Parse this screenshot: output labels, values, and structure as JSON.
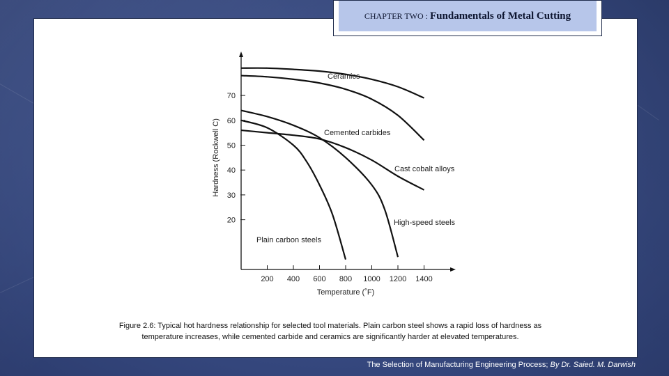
{
  "header": {
    "chapter": "CHAPTER TWO :",
    "title": "Fundamentals of Metal Cutting"
  },
  "chart_data": {
    "type": "line",
    "title": "",
    "xlabel": "Temperature (˚F)",
    "ylabel": "Hardness (Rockwell C)",
    "xlim": [
      0,
      1600
    ],
    "ylim": [
      0,
      90
    ],
    "x_ticks": [
      200,
      400,
      600,
      800,
      1000,
      1200,
      1400
    ],
    "y_ticks": [
      20,
      30,
      40,
      50,
      60,
      70
    ],
    "grid": false,
    "legend": "none",
    "line_color": "#111111",
    "series": [
      {
        "name": "Ceramics",
        "x": [
          0,
          200,
          400,
          600,
          800,
          1000,
          1200,
          1400
        ],
        "y": [
          81,
          81,
          80.5,
          79.8,
          78.5,
          76.5,
          73.5,
          69
        ]
      },
      {
        "name": "Cemented carbides",
        "x": [
          0,
          200,
          400,
          600,
          800,
          1000,
          1200,
          1400
        ],
        "y": [
          78,
          77.5,
          76.5,
          75,
          72.5,
          68.5,
          62,
          52
        ]
      },
      {
        "name": "Cast cobalt alloys",
        "x": [
          0,
          200,
          400,
          600,
          800,
          1000,
          1200,
          1400
        ],
        "y": [
          56,
          55,
          54,
          52.5,
          49,
          44,
          37.5,
          32
        ]
      },
      {
        "name": "High-speed steels",
        "x": [
          0,
          200,
          400,
          600,
          800,
          1000,
          1100,
          1200
        ],
        "y": [
          64,
          61.5,
          58,
          53,
          45,
          34,
          24,
          5
        ]
      },
      {
        "name": "Plain carbon steels",
        "x": [
          0,
          200,
          400,
          500,
          600,
          700,
          800
        ],
        "y": [
          60,
          57,
          50,
          43.5,
          34,
          22,
          4
        ]
      }
    ]
  },
  "caption": "Figure 2.6: Typical hot hardness relationship for selected tool materials. Plain carbon steel shows a rapid loss of hardness as temperature increases, while cemented carbide and ceramics are significantly harder at elevated temperatures.",
  "footer": {
    "text": "The Selection of Manufacturing Engineering Process;",
    "author": "By Dr. Saied. M. Darwish"
  }
}
